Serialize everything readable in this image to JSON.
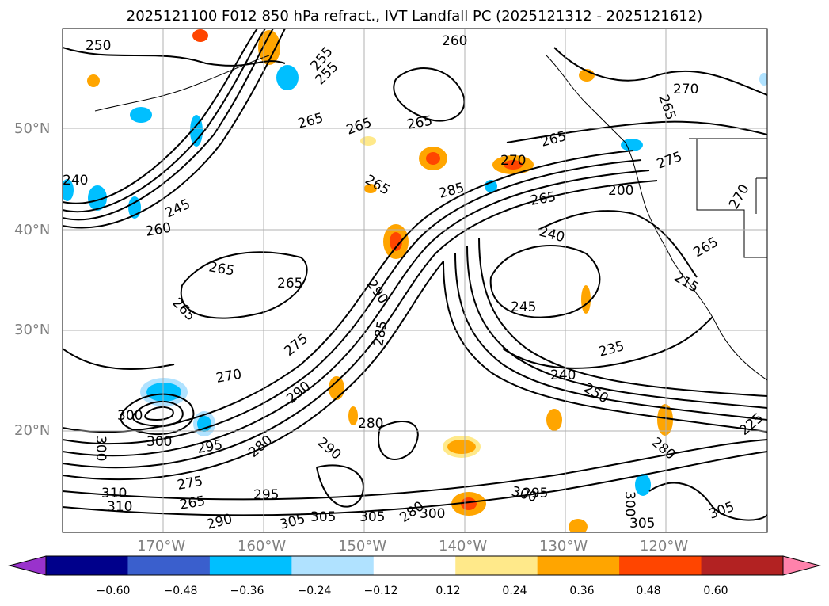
{
  "title": "2025121100 F012 850 hPa refract., IVT Landfall PC (2025121312 - 2025121612)",
  "latitude_labels": [
    "50°N",
    "40°N",
    "30°N",
    "20°N"
  ],
  "longitude_labels": [
    "170°W",
    "160°W",
    "150°W",
    "140°W",
    "130°W",
    "120°W"
  ],
  "colorbar": {
    "ticks": [
      "−0.60",
      "−0.48",
      "−0.36",
      "−0.24",
      "−0.12",
      "0.12",
      "0.24",
      "0.36",
      "0.48",
      "0.60"
    ],
    "colors": [
      "#9932cc",
      "#00008b",
      "#3a5fcd",
      "#00bfff",
      "#b0e2ff",
      "#ffffff",
      "#ffe98a",
      "#ffa500",
      "#ff4500",
      "#b22222",
      "#ff82ab"
    ]
  },
  "contour_labels": [
    "260",
    "250",
    "270",
    "255",
    "265",
    "240",
    "245",
    "285",
    "200",
    "275",
    "290",
    "235",
    "225",
    "300",
    "295",
    "280",
    "310",
    "305",
    "250",
    "215"
  ]
}
